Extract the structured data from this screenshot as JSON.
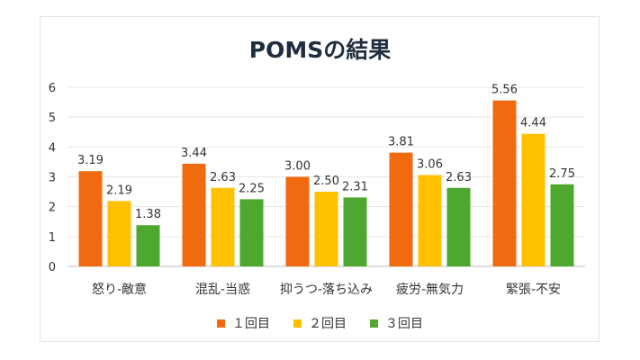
{
  "chart_data": {
    "type": "bar",
    "title": "POMSの結果",
    "categories": [
      "怒り-敵意",
      "混乱-当惑",
      "抑うつ-落ち込み",
      "疲労-無気力",
      "緊張-不安"
    ],
    "series": [
      {
        "name": "１回目",
        "values": [
          3.19,
          3.44,
          3.0,
          3.81,
          5.56
        ],
        "labels": [
          "3.19",
          "3.44",
          "3.00",
          "3.81",
          "5.56"
        ],
        "color": "#f26a0f"
      },
      {
        "name": "２回目",
        "values": [
          2.19,
          2.63,
          2.5,
          3.06,
          4.44
        ],
        "labels": [
          "2.19",
          "2.63",
          "2.50",
          "3.06",
          "4.44"
        ],
        "color": "#ffc000"
      },
      {
        "name": "３回目",
        "values": [
          1.38,
          2.25,
          2.31,
          2.63,
          2.75
        ],
        "labels": [
          "1.38",
          "2.25",
          "2.31",
          "2.63",
          "2.75"
        ],
        "color": "#4ea72e"
      }
    ],
    "ylim": [
      0,
      6
    ],
    "yticks": [
      "0",
      "1",
      "2",
      "3",
      "4",
      "5",
      "6"
    ],
    "xlabel": "",
    "ylabel": "",
    "grid": true,
    "legend_position": "bottom"
  }
}
